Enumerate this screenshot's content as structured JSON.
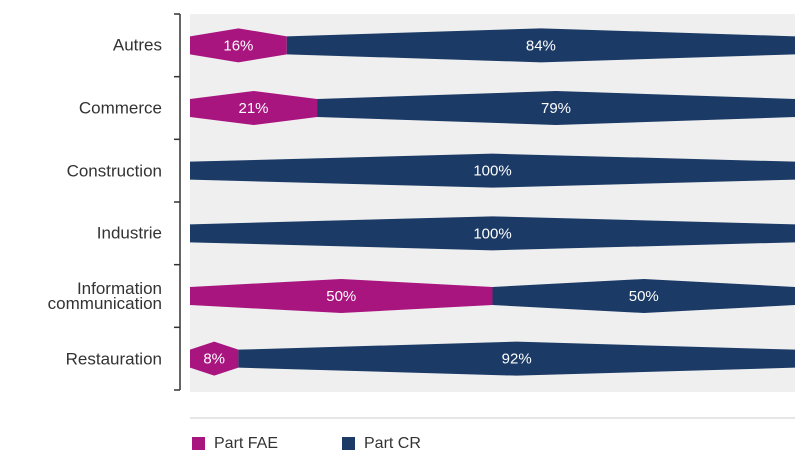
{
  "chart_data": {
    "type": "bar",
    "orientation": "horizontal",
    "stacked": true,
    "categories": [
      "Autres",
      "Commerce",
      "Construction",
      "Industrie",
      "Information communication",
      "Restauration"
    ],
    "series": [
      {
        "name": "Part FAE",
        "color": "#a8157f",
        "values": [
          16,
          21,
          0,
          0,
          50,
          8
        ],
        "value_labels": [
          "16%",
          "21%",
          null,
          null,
          "50%",
          "8%"
        ]
      },
      {
        "name": "Part CR",
        "color": "#1b3a66",
        "values": [
          84,
          79,
          100,
          100,
          50,
          92
        ],
        "value_labels": [
          "84%",
          "79%",
          "100%",
          "100%",
          "50%",
          "92%"
        ]
      }
    ],
    "xlim": [
      0,
      100
    ],
    "legend": "bottom-left"
  }
}
